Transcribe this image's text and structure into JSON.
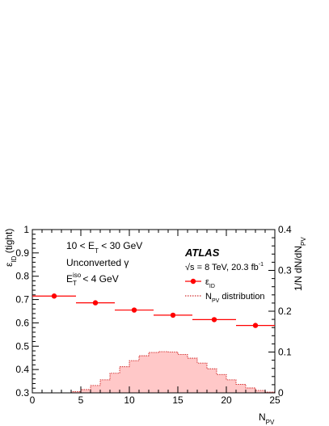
{
  "chart_data": {
    "type": "scatter",
    "experiment_label": "ATLAS",
    "energy_text": "√s = 8 TeV, 20.3 fb",
    "energy_sup": "-1",
    "selection_lines": [
      {
        "pre": "10 < E",
        "sub": "T",
        "post": " < 30 GeV"
      },
      {
        "pre": "Unconverted γ",
        "sub": "",
        "post": ""
      },
      {
        "pre": "E",
        "sub": "T",
        "sup": "iso",
        "post": " < 4 GeV"
      }
    ],
    "xlabel": {
      "main": "N",
      "sub": "PV"
    },
    "ylabel_left": {
      "main": "ε",
      "sub": "ID",
      "post": " (tight)"
    },
    "ylabel_right": {
      "main": "1/N dN/dN",
      "sub": "PV"
    },
    "xlim": [
      0,
      25
    ],
    "ylim_left": [
      0.3,
      1.0
    ],
    "ylim_right": [
      0,
      0.4
    ],
    "xticks": [
      0,
      5,
      10,
      15,
      20,
      25
    ],
    "yticks_left": [
      0.3,
      0.4,
      0.5,
      0.6,
      0.7,
      0.8,
      0.9,
      1
    ],
    "yticks_right": [
      0,
      0.1,
      0.2,
      0.3,
      0.4
    ],
    "legend": [
      {
        "key": "efficiency",
        "main": "ε",
        "sub": "ID"
      },
      {
        "key": "npv",
        "main": "N",
        "sub": "PV",
        "post": " distribution"
      }
    ],
    "series": [
      {
        "kind": "points_with_xerr",
        "color": "#ff0000",
        "points": [
          {
            "xlo": 0,
            "xhi": 4.5,
            "y": 0.715
          },
          {
            "xlo": 4.5,
            "xhi": 8.5,
            "y": 0.686
          },
          {
            "xlo": 8.5,
            "xhi": 12.5,
            "y": 0.655
          },
          {
            "xlo": 12.5,
            "xhi": 16.5,
            "y": 0.633
          },
          {
            "xlo": 16.5,
            "xhi": 21,
            "y": 0.614
          },
          {
            "xlo": 21,
            "xhi": 25,
            "y": 0.589
          }
        ]
      },
      {
        "kind": "histogram",
        "fill": "#ffc8c8",
        "line": "#c80000",
        "bin_width": 1,
        "bins_start": 0,
        "values": [
          0,
          0,
          0,
          0,
          0.003,
          0.008,
          0.018,
          0.032,
          0.048,
          0.064,
          0.079,
          0.091,
          0.099,
          0.101,
          0.1,
          0.094,
          0.085,
          0.073,
          0.059,
          0.045,
          0.032,
          0.021,
          0.012,
          0.006,
          0.002
        ]
      }
    ]
  }
}
